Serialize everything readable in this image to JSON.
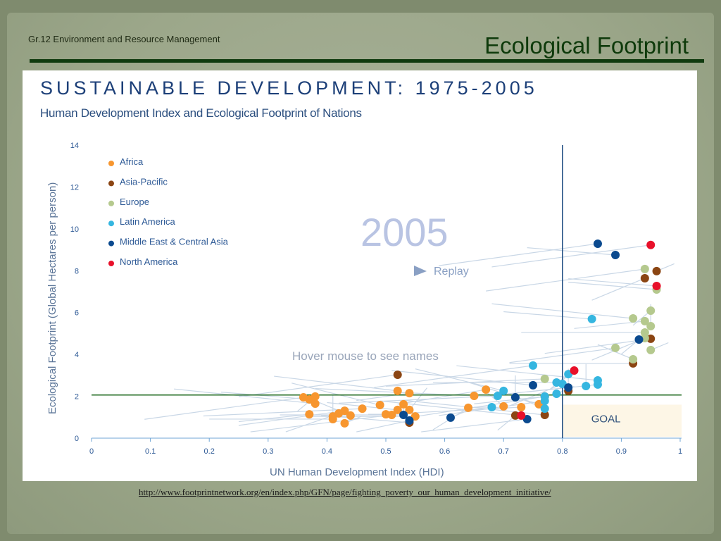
{
  "slide": {
    "course": "Gr.12 Environment and Resource Management",
    "title": "Ecological Footprint",
    "url": "http://www.footprintnetwork.org/en/index.php/GFN/page/fighting_poverty_our_human_development_initiative/"
  },
  "chart_data": {
    "type": "scatter",
    "title": "SUSTAINABLE DEVELOPMENT: 1975-2005",
    "subtitle": "Human Development Index and Ecological Footprint of Nations",
    "xlabel": "UN Human Development Index (HDI)",
    "ylabel": "Ecological Footprint (Global Hectares per person)",
    "xlim": [
      0,
      1
    ],
    "ylim": [
      0,
      14
    ],
    "xticks": [
      "0",
      "0.1",
      "0.2",
      "0.3",
      "0.4",
      "0.5",
      "0.6",
      "0.7",
      "0.8",
      "0.9",
      "1"
    ],
    "yticks": [
      "0",
      "2",
      "4",
      "6",
      "8",
      "10",
      "12",
      "14"
    ],
    "legend_placement": "top-left",
    "year_label": "2005",
    "replay_label": "Replay",
    "hover_hint": "Hover mouse to see names",
    "goal_label": "GOAL",
    "goal": {
      "hdi_min": 0.8,
      "footprint_max": 2.06
    },
    "series": [
      {
        "name": "Africa",
        "color": "#f7962f",
        "points": [
          [
            0.36,
            1.95
          ],
          [
            0.37,
            1.85
          ],
          [
            0.38,
            1.99
          ],
          [
            0.38,
            1.65
          ],
          [
            0.37,
            1.14
          ],
          [
            0.41,
            1.04
          ],
          [
            0.41,
            0.91
          ],
          [
            0.42,
            1.18
          ],
          [
            0.43,
            0.71
          ],
          [
            0.43,
            1.31
          ],
          [
            0.44,
            1.08
          ],
          [
            0.46,
            1.41
          ],
          [
            0.49,
            1.58
          ],
          [
            0.5,
            1.14
          ],
          [
            0.51,
            1.11
          ],
          [
            0.52,
            1.35
          ],
          [
            0.53,
            1.62
          ],
          [
            0.52,
            2.26
          ],
          [
            0.54,
            2.15
          ],
          [
            0.54,
            1.35
          ],
          [
            0.55,
            1.04
          ],
          [
            0.64,
            1.45
          ],
          [
            0.65,
            2.02
          ],
          [
            0.67,
            2.32
          ],
          [
            0.7,
            1.52
          ],
          [
            0.73,
            1.48
          ],
          [
            0.76,
            1.62
          ]
        ]
      },
      {
        "name": "Asia-Pacific",
        "color": "#8b4513",
        "points": [
          [
            0.52,
            3.03
          ],
          [
            0.54,
            0.74
          ],
          [
            0.72,
            1.08
          ],
          [
            0.77,
            1.11
          ],
          [
            0.77,
            1.99
          ],
          [
            0.81,
            2.26
          ],
          [
            0.92,
            3.57
          ],
          [
            0.94,
            7.64
          ],
          [
            0.96,
            7.98
          ],
          [
            0.95,
            4.75
          ]
        ]
      },
      {
        "name": "Europe",
        "color": "#b5c98e",
        "points": [
          [
            0.94,
            8.08
          ],
          [
            0.96,
            7.1
          ],
          [
            0.95,
            6.09
          ],
          [
            0.92,
            5.72
          ],
          [
            0.94,
            5.59
          ],
          [
            0.95,
            5.35
          ],
          [
            0.94,
            5.05
          ],
          [
            0.94,
            4.78
          ],
          [
            0.95,
            4.21
          ],
          [
            0.89,
            4.31
          ],
          [
            0.92,
            3.77
          ],
          [
            0.77,
            2.83
          ]
        ]
      },
      {
        "name": "Latin America",
        "color": "#35b6e0",
        "points": [
          [
            0.75,
            3.47
          ],
          [
            0.85,
            5.69
          ],
          [
            0.81,
            3.06
          ],
          [
            0.86,
            2.76
          ],
          [
            0.86,
            2.56
          ],
          [
            0.84,
            2.49
          ],
          [
            0.79,
            2.66
          ],
          [
            0.8,
            2.59
          ],
          [
            0.79,
            2.12
          ],
          [
            0.77,
            1.78
          ],
          [
            0.77,
            1.41
          ],
          [
            0.69,
            2.02
          ],
          [
            0.7,
            2.26
          ],
          [
            0.68,
            1.48
          ],
          [
            0.77,
            1.99
          ]
        ]
      },
      {
        "name": "Middle East & Central Asia",
        "color": "#0b4a8f",
        "points": [
          [
            0.86,
            9.29
          ],
          [
            0.89,
            8.75
          ],
          [
            0.93,
            4.71
          ],
          [
            0.75,
            2.53
          ],
          [
            0.81,
            2.42
          ],
          [
            0.72,
            1.95
          ],
          [
            0.53,
            1.11
          ],
          [
            0.54,
            0.84
          ],
          [
            0.61,
            0.98
          ],
          [
            0.74,
            0.91
          ]
        ]
      },
      {
        "name": "North America",
        "color": "#e8102a",
        "points": [
          [
            0.95,
            9.23
          ],
          [
            0.96,
            7.27
          ],
          [
            0.82,
            3.23
          ],
          [
            0.73,
            1.08
          ]
        ]
      }
    ]
  }
}
